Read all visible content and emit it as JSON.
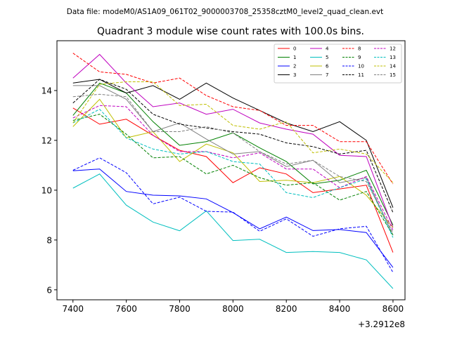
{
  "header_text": "Data file: modeM0/AS1A09_061T02_9000003708_25358cztM0_level2_quad_clean.evt",
  "chart_data": {
    "type": "line",
    "title": "Quadrant 3 module wise count rates with 100.0s bins.",
    "xlabel": "",
    "ylabel": "",
    "x_offset_label": "+3.2912e8",
    "x": [
      7400,
      7500,
      7600,
      7700,
      7800,
      7900,
      8000,
      8100,
      8200,
      8300,
      8400,
      8500,
      8600
    ],
    "xlim": [
      7340,
      8645
    ],
    "ylim": [
      5.6,
      16.0
    ],
    "x_ticks": [
      7400,
      7600,
      7800,
      8000,
      8200,
      8400,
      8600
    ],
    "x_tick_labels": [
      "7400",
      "7600",
      "7800",
      "8000",
      "8200",
      "8400",
      "8600"
    ],
    "y_ticks": [
      6,
      8,
      10,
      12,
      14
    ],
    "y_tick_labels": [
      "6",
      "8",
      "10",
      "12",
      "14"
    ],
    "grid": false,
    "legend_position": "top-right",
    "series": [
      {
        "name": "0",
        "color": "#ff0000",
        "dash": "solid",
        "values": [
          13.3,
          12.65,
          12.85,
          12.2,
          11.6,
          11.35,
          10.3,
          10.9,
          10.65,
          9.9,
          10.05,
          10.2,
          7.5
        ]
      },
      {
        "name": "1",
        "color": "#008000",
        "dash": "solid",
        "values": [
          13.0,
          14.3,
          13.9,
          12.75,
          11.8,
          11.95,
          12.3,
          11.7,
          11.15,
          10.25,
          10.4,
          10.8,
          8.6
        ]
      },
      {
        "name": "2",
        "color": "#0000ff",
        "dash": "solid",
        "values": [
          10.78,
          10.85,
          9.95,
          9.8,
          9.77,
          9.65,
          9.1,
          8.45,
          8.92,
          8.38,
          8.42,
          8.3,
          6.9
        ]
      },
      {
        "name": "3",
        "color": "#000000",
        "dash": "solid",
        "values": [
          14.3,
          14.45,
          13.9,
          14.2,
          13.65,
          14.3,
          13.7,
          13.2,
          12.7,
          12.35,
          12.75,
          12.0,
          9.3
        ]
      },
      {
        "name": "4",
        "color": "#bf00bf",
        "dash": "solid",
        "values": [
          14.5,
          15.45,
          14.3,
          13.35,
          13.5,
          13.05,
          13.25,
          12.7,
          12.45,
          12.25,
          11.4,
          11.35,
          8.5
        ]
      },
      {
        "name": "5",
        "color": "#00bfbf",
        "dash": "solid",
        "values": [
          10.08,
          10.65,
          9.4,
          8.72,
          8.37,
          9.17,
          7.98,
          8.03,
          7.5,
          7.54,
          7.5,
          7.2,
          6.05
        ]
      },
      {
        "name": "6",
        "color": "#bfbf00",
        "dash": "solid",
        "values": [
          12.55,
          13.65,
          12.1,
          12.35,
          11.15,
          11.85,
          11.5,
          10.35,
          10.4,
          10.3,
          10.55,
          9.8,
          8.5
        ]
      },
      {
        "name": "7",
        "color": "#808080",
        "dash": "solid",
        "values": [
          14.2,
          14.2,
          13.65,
          12.35,
          12.7,
          12.05,
          11.45,
          11.55,
          10.95,
          11.2,
          10.3,
          10.5,
          8.2
        ]
      },
      {
        "name": "8",
        "color": "#ff0000",
        "dash": "dashed",
        "values": [
          15.5,
          14.75,
          14.65,
          14.3,
          14.5,
          13.8,
          13.35,
          13.2,
          12.6,
          12.6,
          11.95,
          11.95,
          10.25
        ]
      },
      {
        "name": "9",
        "color": "#008000",
        "dash": "dashed",
        "values": [
          12.8,
          13.05,
          12.25,
          11.3,
          11.35,
          10.65,
          11.0,
          10.5,
          10.2,
          10.3,
          9.6,
          9.95,
          8.2
        ]
      },
      {
        "name": "10",
        "color": "#0000ff",
        "dash": "dashed",
        "values": [
          10.8,
          11.3,
          10.7,
          9.45,
          9.72,
          9.15,
          9.12,
          8.35,
          8.85,
          8.15,
          8.45,
          8.55,
          6.7
        ]
      },
      {
        "name": "11",
        "color": "#000000",
        "dash": "dashed",
        "values": [
          13.5,
          14.45,
          14.05,
          13.05,
          12.65,
          12.5,
          12.35,
          12.25,
          11.9,
          11.75,
          11.45,
          11.6,
          9.1
        ]
      },
      {
        "name": "12",
        "color": "#bf00bf",
        "dash": "dashed",
        "values": [
          12.9,
          13.4,
          13.35,
          12.2,
          11.55,
          11.55,
          11.3,
          11.5,
          10.85,
          10.85,
          10.1,
          10.55,
          8.4
        ]
      },
      {
        "name": "13",
        "color": "#00bfbf",
        "dash": "dashed",
        "values": [
          12.7,
          13.25,
          12.1,
          11.65,
          11.45,
          11.55,
          11.15,
          11.05,
          9.9,
          9.7,
          10.1,
          10.45,
          8.1
        ]
      },
      {
        "name": "14",
        "color": "#bfbf00",
        "dash": "dashed",
        "values": [
          12.7,
          14.25,
          14.35,
          14.35,
          13.4,
          13.45,
          12.6,
          12.45,
          12.75,
          11.5,
          11.65,
          11.45,
          10.3
        ]
      },
      {
        "name": "15",
        "color": "#808080",
        "dash": "dashed",
        "values": [
          13.75,
          13.85,
          13.75,
          12.35,
          12.35,
          12.55,
          12.3,
          11.55,
          11.05,
          11.2,
          10.55,
          10.35,
          8.3
        ]
      }
    ]
  }
}
